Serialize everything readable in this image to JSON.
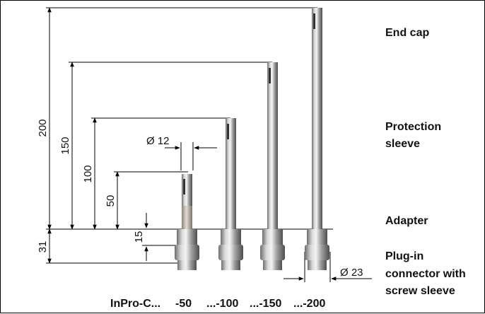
{
  "dimensions": {
    "h200": "200",
    "h150": "150",
    "h100": "100",
    "h50": "50",
    "h15": "15",
    "h31": "31",
    "d12": "Ø 12",
    "d23": "Ø 23"
  },
  "parts": {
    "end_cap": "End cap",
    "protection_sleeve_1": "Protection",
    "protection_sleeve_2": "sleeve",
    "adapter": "Adapter",
    "plug_in_1": "Plug-in",
    "plug_in_2": "connector with",
    "plug_in_3": "screw sleeve"
  },
  "models": {
    "prefix": "InPro-C...",
    "m50": "-50",
    "m100": "...-100",
    "m150": "...-150",
    "m200": "...-200"
  }
}
